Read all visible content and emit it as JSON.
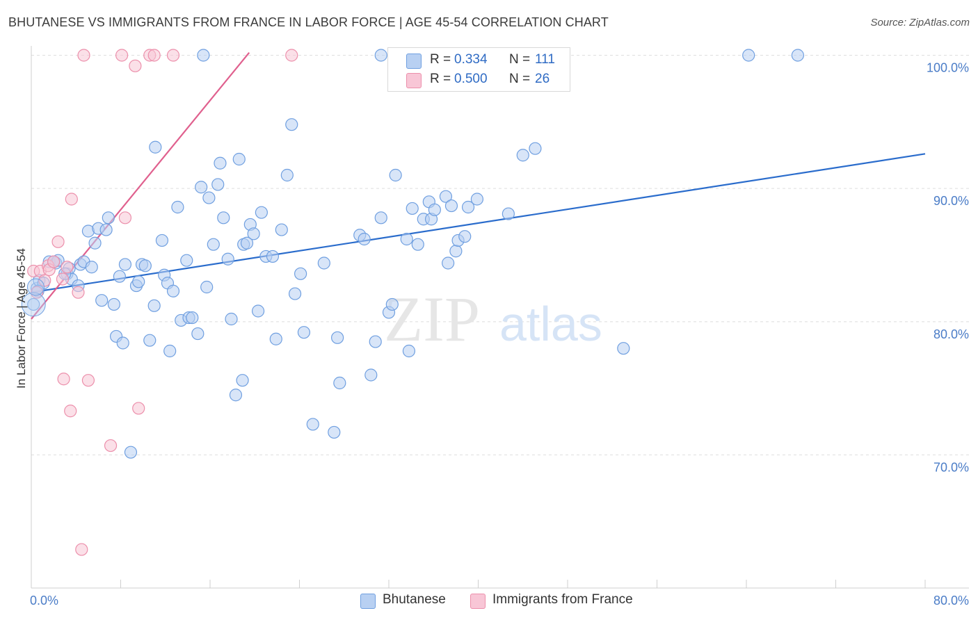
{
  "chart_data": {
    "type": "scatter",
    "title": "BHUTANESE VS IMMIGRANTS FROM FRANCE IN LABOR FORCE | AGE 45-54 CORRELATION CHART",
    "source": "Source: ZipAtlas.com",
    "xlabel": "",
    "ylabel": "In Labor Force | Age 45-54",
    "xlim": [
      0,
      80
    ],
    "ylim": [
      60,
      101
    ],
    "x_tick_labels": [
      "0.0%",
      "80.0%"
    ],
    "y_ticks": [
      {
        "value": 100,
        "label": "100.0%"
      },
      {
        "value": 90,
        "label": "90.0%"
      },
      {
        "value": 80,
        "label": "80.0%"
      },
      {
        "value": 70,
        "label": "70.0%"
      }
    ],
    "watermark": {
      "zip": "ZIP",
      "atlas": "atlas"
    },
    "legend": [
      {
        "name": "Bhutanese",
        "r_label": "R =",
        "r": "0.334",
        "n_label": "N =",
        "n": "111"
      },
      {
        "name": "Immigrants from France",
        "r_label": "R =",
        "r": "0.500",
        "n_label": "N =",
        "n": "26"
      }
    ],
    "series": [
      {
        "name": "Bhutanese",
        "color": "#6f9fe0",
        "fill": "#b8d0f2",
        "trend": {
          "x": [
            0,
            80
          ],
          "y": [
            82.2,
            92.6
          ],
          "color": "#2a6ccc"
        },
        "points": [
          [
            0.2,
            81.3
          ],
          [
            0.5,
            82.5
          ],
          [
            0.7,
            83.1
          ],
          [
            1.1,
            82.9
          ],
          [
            1.6,
            84.5
          ],
          [
            2.2,
            84.4
          ],
          [
            2.4,
            84.6
          ],
          [
            3.2,
            83.6
          ],
          [
            3.4,
            84.0
          ],
          [
            3.6,
            83.2
          ],
          [
            4.2,
            82.7
          ],
          [
            4.4,
            84.3
          ],
          [
            4.7,
            84.5
          ],
          [
            5.1,
            86.8
          ],
          [
            5.4,
            84.1
          ],
          [
            5.7,
            85.9
          ],
          [
            6.0,
            87.0
          ],
          [
            6.3,
            81.6
          ],
          [
            6.7,
            86.9
          ],
          [
            6.9,
            87.8
          ],
          [
            7.4,
            81.3
          ],
          [
            7.6,
            78.9
          ],
          [
            7.9,
            83.4
          ],
          [
            8.2,
            78.4
          ],
          [
            8.4,
            84.3
          ],
          [
            8.9,
            70.2
          ],
          [
            9.4,
            82.7
          ],
          [
            9.6,
            83.0
          ],
          [
            9.9,
            84.3
          ],
          [
            10.2,
            84.2
          ],
          [
            10.6,
            78.6
          ],
          [
            11.0,
            81.2
          ],
          [
            11.1,
            93.1
          ],
          [
            11.7,
            86.1
          ],
          [
            11.9,
            83.5
          ],
          [
            12.2,
            82.9
          ],
          [
            12.4,
            77.8
          ],
          [
            12.7,
            82.3
          ],
          [
            13.1,
            88.6
          ],
          [
            13.4,
            80.1
          ],
          [
            13.9,
            84.6
          ],
          [
            14.1,
            80.3
          ],
          [
            14.4,
            80.3
          ],
          [
            14.9,
            79.1
          ],
          [
            15.2,
            90.1
          ],
          [
            15.4,
            100.0
          ],
          [
            15.7,
            82.6
          ],
          [
            15.9,
            89.3
          ],
          [
            16.3,
            85.8
          ],
          [
            16.7,
            90.3
          ],
          [
            16.9,
            91.9
          ],
          [
            17.2,
            87.8
          ],
          [
            17.6,
            84.7
          ],
          [
            17.9,
            80.2
          ],
          [
            18.3,
            74.5
          ],
          [
            18.6,
            92.2
          ],
          [
            18.9,
            75.6
          ],
          [
            19.0,
            85.8
          ],
          [
            19.3,
            85.9
          ],
          [
            19.6,
            87.3
          ],
          [
            19.9,
            86.6
          ],
          [
            20.3,
            80.8
          ],
          [
            20.6,
            88.2
          ],
          [
            21.0,
            84.9
          ],
          [
            21.6,
            84.9
          ],
          [
            21.9,
            78.7
          ],
          [
            22.4,
            86.9
          ],
          [
            22.9,
            91.0
          ],
          [
            23.3,
            94.8
          ],
          [
            23.6,
            82.1
          ],
          [
            24.1,
            83.6
          ],
          [
            24.4,
            79.2
          ],
          [
            25.2,
            72.3
          ],
          [
            26.2,
            84.4
          ],
          [
            27.1,
            71.7
          ],
          [
            27.4,
            78.8
          ],
          [
            27.6,
            75.4
          ],
          [
            29.4,
            86.5
          ],
          [
            29.8,
            86.2
          ],
          [
            30.4,
            76.0
          ],
          [
            30.8,
            78.5
          ],
          [
            31.3,
            100.0
          ],
          [
            31.3,
            87.8
          ],
          [
            32.0,
            80.7
          ],
          [
            32.3,
            81.3
          ],
          [
            32.6,
            91.0
          ],
          [
            33.6,
            86.2
          ],
          [
            33.8,
            77.8
          ],
          [
            34.1,
            88.5
          ],
          [
            34.6,
            85.8
          ],
          [
            35.1,
            87.7
          ],
          [
            35.6,
            89.0
          ],
          [
            35.8,
            87.7
          ],
          [
            36.1,
            88.4
          ],
          [
            37.1,
            89.4
          ],
          [
            37.3,
            84.4
          ],
          [
            37.6,
            88.7
          ],
          [
            38.0,
            85.3
          ],
          [
            38.2,
            86.1
          ],
          [
            38.8,
            86.4
          ],
          [
            39.1,
            88.6
          ],
          [
            39.9,
            89.2
          ],
          [
            42.7,
            88.1
          ],
          [
            44.0,
            92.5
          ],
          [
            45.1,
            93.0
          ],
          [
            53.0,
            78.0
          ],
          [
            64.2,
            100.0
          ],
          [
            68.6,
            100.0
          ],
          [
            0.6,
            82.3
          ],
          [
            2.0,
            84.5
          ],
          [
            3.0,
            83.6
          ]
        ]
      },
      {
        "name": "Immigrants from France",
        "color": "#ec8fab",
        "fill": "#f8c6d6",
        "trend": {
          "x": [
            0,
            19.5
          ],
          "y": [
            80.2,
            100.2
          ],
          "color": "#e0608e"
        },
        "points": [
          [
            0.2,
            83.8
          ],
          [
            0.5,
            82.2
          ],
          [
            0.8,
            83.8
          ],
          [
            1.2,
            83.1
          ],
          [
            1.5,
            84.2
          ],
          [
            1.6,
            83.9
          ],
          [
            2.0,
            84.5
          ],
          [
            2.4,
            86.0
          ],
          [
            2.8,
            83.2
          ],
          [
            2.9,
            75.7
          ],
          [
            3.2,
            84.1
          ],
          [
            3.5,
            73.3
          ],
          [
            3.6,
            89.2
          ],
          [
            4.2,
            82.2
          ],
          [
            4.5,
            62.9
          ],
          [
            4.7,
            100.0
          ],
          [
            5.1,
            75.6
          ],
          [
            7.1,
            70.7
          ],
          [
            8.1,
            100.0
          ],
          [
            8.4,
            87.8
          ],
          [
            9.3,
            99.2
          ],
          [
            9.6,
            73.5
          ],
          [
            10.6,
            100.0
          ],
          [
            11.0,
            100.0
          ],
          [
            12.7,
            100.0
          ],
          [
            23.3,
            100.0
          ]
        ]
      }
    ]
  }
}
